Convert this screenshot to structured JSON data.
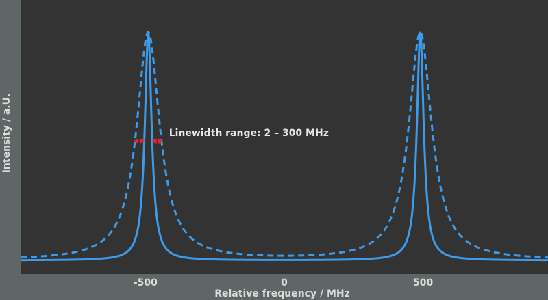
{
  "chart_data": {
    "type": "line",
    "title": "",
    "xlabel": "Relative frequency / MHz",
    "ylabel": "Intensity / a.U.",
    "xlim": [
      -950,
      950
    ],
    "ylim": [
      0,
      1.03
    ],
    "x_ticks": [
      {
        "value": -500,
        "label": "-500"
      },
      {
        "value": 0,
        "label": "0"
      },
      {
        "value": 500,
        "label": "500"
      }
    ],
    "grid": false,
    "legend": "none",
    "peaks_center": [
      -490,
      490
    ],
    "series": [
      {
        "style": "solid",
        "linewidth_fwhm": 30,
        "color": "#3d9be9"
      },
      {
        "style": "dashed",
        "linewidth_fwhm": 100,
        "color": "#3d9be9"
      }
    ],
    "annotation": {
      "text": "Linewidth range: 2 – 300 MHz",
      "at_intensity": 0.5,
      "arrow_color": "#e8232a"
    },
    "colors": {
      "plot_background": "#333333",
      "page_background": "#5f6766",
      "series": "#3d9be9",
      "label_text": "#d9dddc"
    }
  }
}
